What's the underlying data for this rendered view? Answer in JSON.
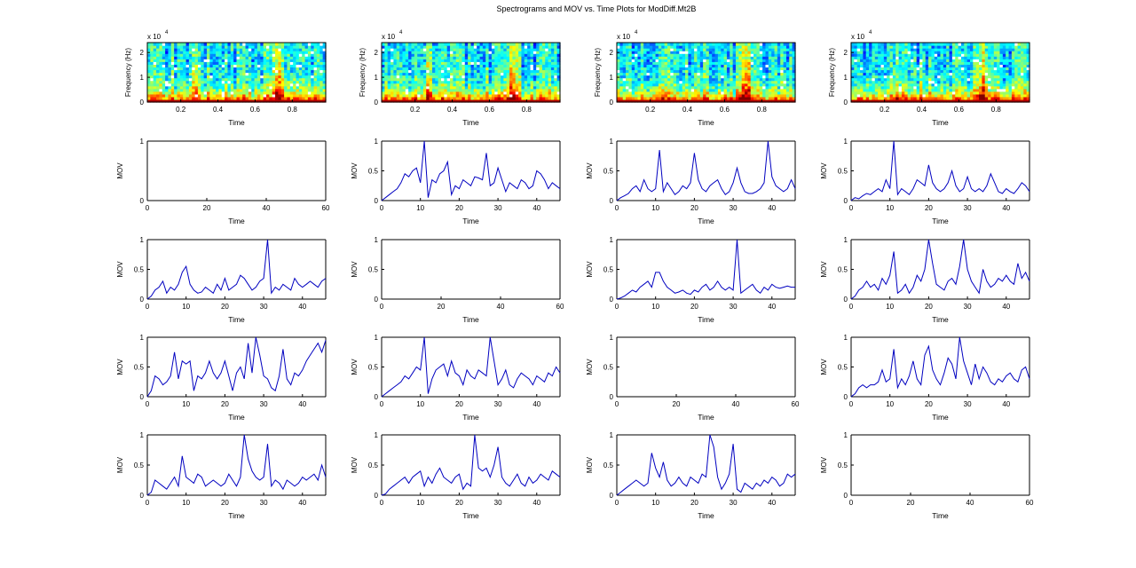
{
  "figure": {
    "title": "Spectrograms and MOV vs. Time Plots for ModDiff.Mt2B"
  },
  "colors": {
    "line": "#0000c0",
    "axes": "#000000",
    "background": "#ffffff"
  },
  "chart_data": [
    {
      "type": "heatmap",
      "panel": "spectrogram-1",
      "xlabel": "Time",
      "ylabel": "Frequency (Hz)",
      "exponent_label": "x 10",
      "exponent": "4",
      "x_ticks": [
        "0.2",
        "0.4",
        "0.6",
        "0.8"
      ],
      "y_ticks": [
        "0",
        "1",
        "2"
      ],
      "xlim": [
        0.02,
        0.98
      ],
      "ylim": [
        0,
        2.4
      ],
      "seed": 11
    },
    {
      "type": "heatmap",
      "panel": "spectrogram-2",
      "xlabel": "Time",
      "ylabel": "Frequency (Hz)",
      "exponent_label": "x 10",
      "exponent": "4",
      "x_ticks": [
        "0.2",
        "0.4",
        "0.6",
        "0.8"
      ],
      "y_ticks": [
        "0",
        "1",
        "2"
      ],
      "xlim": [
        0.02,
        0.98
      ],
      "ylim": [
        0,
        2.4
      ],
      "seed": 23
    },
    {
      "type": "heatmap",
      "panel": "spectrogram-3",
      "xlabel": "Time",
      "ylabel": "Frequency (Hz)",
      "exponent_label": "x 10",
      "exponent": "4",
      "x_ticks": [
        "0.2",
        "0.4",
        "0.6",
        "0.8"
      ],
      "y_ticks": [
        "0",
        "1",
        "2"
      ],
      "xlim": [
        0.02,
        0.98
      ],
      "ylim": [
        0,
        2.4
      ],
      "seed": 37
    },
    {
      "type": "heatmap",
      "panel": "spectrogram-4",
      "xlabel": "Time",
      "ylabel": "Frequency (Hz)",
      "exponent_label": "x 10",
      "exponent": "4",
      "x_ticks": [
        "0.2",
        "0.4",
        "0.6",
        "0.8"
      ],
      "y_ticks": [
        "0",
        "1",
        "2"
      ],
      "xlim": [
        0.02,
        0.98
      ],
      "ylim": [
        0,
        2.4
      ],
      "seed": 53
    },
    {
      "type": "line",
      "panel": "mov-r1-c1",
      "xlabel": "Time",
      "ylabel": "MOV",
      "xlim": [
        0,
        60
      ],
      "ylim": [
        0,
        1
      ],
      "x_ticks": [
        0,
        20,
        40,
        60
      ],
      "y_ticks": [
        "0",
        "1"
      ],
      "values": []
    },
    {
      "type": "line",
      "panel": "mov-r1-c2",
      "xlabel": "Time",
      "ylabel": "MOV",
      "xlim": [
        0,
        46
      ],
      "ylim": [
        0,
        1
      ],
      "x_ticks": [
        0,
        10,
        20,
        30,
        40
      ],
      "y_ticks": [
        "0",
        "0.5",
        "1"
      ],
      "values": [
        0,
        0.05,
        0.1,
        0.15,
        0.2,
        0.3,
        0.45,
        0.4,
        0.5,
        0.55,
        0.3,
        1.0,
        0.05,
        0.35,
        0.3,
        0.45,
        0.5,
        0.65,
        0.1,
        0.25,
        0.2,
        0.35,
        0.3,
        0.25,
        0.4,
        0.38,
        0.35,
        0.8,
        0.25,
        0.3,
        0.55,
        0.35,
        0.15,
        0.3,
        0.25,
        0.2,
        0.35,
        0.3,
        0.2,
        0.25,
        0.5,
        0.45,
        0.35,
        0.2,
        0.3,
        0.25,
        0.2
      ]
    },
    {
      "type": "line",
      "panel": "mov-r1-c3",
      "xlabel": "Time",
      "ylabel": "MOV",
      "xlim": [
        0,
        46
      ],
      "ylim": [
        0,
        1
      ],
      "x_ticks": [
        0,
        10,
        20,
        30,
        40
      ],
      "y_ticks": [
        "0",
        "0.5",
        "1"
      ],
      "values": [
        0,
        0.05,
        0.08,
        0.12,
        0.2,
        0.25,
        0.15,
        0.35,
        0.2,
        0.15,
        0.2,
        0.85,
        0.15,
        0.3,
        0.2,
        0.1,
        0.15,
        0.25,
        0.2,
        0.3,
        0.8,
        0.35,
        0.2,
        0.15,
        0.25,
        0.3,
        0.35,
        0.2,
        0.1,
        0.15,
        0.3,
        0.55,
        0.3,
        0.15,
        0.12,
        0.12,
        0.15,
        0.2,
        0.3,
        1.0,
        0.4,
        0.25,
        0.2,
        0.15,
        0.2,
        0.35,
        0.2
      ]
    },
    {
      "type": "line",
      "panel": "mov-r1-c4",
      "xlabel": "Time",
      "ylabel": "MOV",
      "xlim": [
        0,
        46
      ],
      "ylim": [
        0,
        1
      ],
      "x_ticks": [
        0,
        10,
        20,
        30,
        40
      ],
      "y_ticks": [
        "0",
        "0.5",
        "1"
      ],
      "values": [
        0,
        0.05,
        0.03,
        0.08,
        0.12,
        0.1,
        0.15,
        0.2,
        0.15,
        0.35,
        0.2,
        1.0,
        0.1,
        0.2,
        0.15,
        0.1,
        0.2,
        0.35,
        0.3,
        0.25,
        0.6,
        0.3,
        0.2,
        0.15,
        0.2,
        0.3,
        0.5,
        0.25,
        0.15,
        0.2,
        0.4,
        0.2,
        0.15,
        0.2,
        0.15,
        0.25,
        0.45,
        0.3,
        0.15,
        0.12,
        0.2,
        0.15,
        0.12,
        0.2,
        0.3,
        0.25,
        0.15
      ]
    },
    {
      "type": "line",
      "panel": "mov-r2-c1",
      "xlabel": "Time",
      "ylabel": "MOV",
      "xlim": [
        0,
        46
      ],
      "ylim": [
        0,
        1
      ],
      "x_ticks": [
        0,
        10,
        20,
        30,
        40
      ],
      "y_ticks": [
        "0",
        "0.5",
        "1"
      ],
      "values": [
        0,
        0.05,
        0.15,
        0.2,
        0.3,
        0.1,
        0.2,
        0.15,
        0.25,
        0.45,
        0.55,
        0.25,
        0.15,
        0.1,
        0.12,
        0.2,
        0.15,
        0.1,
        0.25,
        0.15,
        0.35,
        0.15,
        0.2,
        0.25,
        0.4,
        0.35,
        0.25,
        0.15,
        0.2,
        0.3,
        0.35,
        1.0,
        0.1,
        0.2,
        0.15,
        0.25,
        0.2,
        0.15,
        0.35,
        0.25,
        0.2,
        0.25,
        0.3,
        0.25,
        0.2,
        0.3,
        0.35
      ]
    },
    {
      "type": "line",
      "panel": "mov-r2-c2",
      "xlabel": "Time",
      "ylabel": "MOV",
      "xlim": [
        0,
        60
      ],
      "ylim": [
        0,
        1
      ],
      "x_ticks": [
        0,
        20,
        40,
        60
      ],
      "y_ticks": [
        "0",
        "0.5",
        "1"
      ],
      "values": []
    },
    {
      "type": "line",
      "panel": "mov-r2-c3",
      "xlabel": "Time",
      "ylabel": "MOV",
      "xlim": [
        0,
        46
      ],
      "ylim": [
        0,
        1
      ],
      "x_ticks": [
        0,
        10,
        20,
        30,
        40
      ],
      "y_ticks": [
        "0",
        "0.5",
        "1"
      ],
      "values": [
        0,
        0.02,
        0.05,
        0.1,
        0.15,
        0.12,
        0.2,
        0.25,
        0.3,
        0.2,
        0.45,
        0.45,
        0.3,
        0.2,
        0.15,
        0.1,
        0.12,
        0.15,
        0.1,
        0.08,
        0.15,
        0.12,
        0.2,
        0.25,
        0.15,
        0.2,
        0.3,
        0.2,
        0.15,
        0.2,
        0.15,
        1.0,
        0.1,
        0.15,
        0.2,
        0.25,
        0.15,
        0.1,
        0.2,
        0.15,
        0.25,
        0.2,
        0.18,
        0.2,
        0.22,
        0.2,
        0.2
      ]
    },
    {
      "type": "line",
      "panel": "mov-r2-c4",
      "xlabel": "Time",
      "ylabel": "MOV",
      "xlim": [
        0,
        46
      ],
      "ylim": [
        0,
        1
      ],
      "x_ticks": [
        0,
        10,
        20,
        30,
        40
      ],
      "y_ticks": [
        "0",
        "0.5",
        "1"
      ],
      "values": [
        0,
        0.05,
        0.15,
        0.2,
        0.3,
        0.2,
        0.25,
        0.15,
        0.35,
        0.25,
        0.4,
        0.8,
        0.1,
        0.15,
        0.25,
        0.1,
        0.2,
        0.4,
        0.3,
        0.5,
        1.0,
        0.6,
        0.25,
        0.2,
        0.15,
        0.3,
        0.35,
        0.25,
        0.55,
        1.0,
        0.5,
        0.3,
        0.2,
        0.1,
        0.5,
        0.3,
        0.2,
        0.25,
        0.35,
        0.3,
        0.4,
        0.3,
        0.25,
        0.6,
        0.35,
        0.45,
        0.3
      ]
    },
    {
      "type": "line",
      "panel": "mov-r3-c1",
      "xlabel": "Time",
      "ylabel": "MOV",
      "xlim": [
        0,
        46
      ],
      "ylim": [
        0,
        1
      ],
      "x_ticks": [
        0,
        10,
        20,
        30,
        40
      ],
      "y_ticks": [
        "0",
        "0.5",
        "1"
      ],
      "values": [
        0,
        0.1,
        0.35,
        0.3,
        0.2,
        0.25,
        0.35,
        0.75,
        0.3,
        0.6,
        0.55,
        0.6,
        0.1,
        0.35,
        0.3,
        0.4,
        0.6,
        0.4,
        0.3,
        0.4,
        0.6,
        0.35,
        0.1,
        0.4,
        0.5,
        0.3,
        0.9,
        0.4,
        1.0,
        0.7,
        0.35,
        0.3,
        0.15,
        0.1,
        0.35,
        0.8,
        0.3,
        0.2,
        0.4,
        0.35,
        0.45,
        0.6,
        0.7,
        0.8,
        0.9,
        0.75,
        0.95
      ]
    },
    {
      "type": "line",
      "panel": "mov-r3-c2",
      "xlabel": "Time",
      "ylabel": "MOV",
      "xlim": [
        0,
        46
      ],
      "ylim": [
        0,
        1
      ],
      "x_ticks": [
        0,
        10,
        20,
        30,
        40
      ],
      "y_ticks": [
        "0",
        "0.5",
        "1"
      ],
      "values": [
        0,
        0.05,
        0.1,
        0.15,
        0.2,
        0.25,
        0.35,
        0.3,
        0.4,
        0.5,
        0.45,
        1.0,
        0.05,
        0.3,
        0.45,
        0.5,
        0.55,
        0.35,
        0.6,
        0.4,
        0.35,
        0.2,
        0.45,
        0.35,
        0.3,
        0.45,
        0.4,
        0.35,
        1.0,
        0.6,
        0.2,
        0.3,
        0.45,
        0.2,
        0.15,
        0.3,
        0.4,
        0.35,
        0.3,
        0.2,
        0.35,
        0.3,
        0.25,
        0.4,
        0.35,
        0.5,
        0.4
      ]
    },
    {
      "type": "line",
      "panel": "mov-r3-c3",
      "xlabel": "Time",
      "ylabel": "MOV",
      "xlim": [
        0,
        60
      ],
      "ylim": [
        0,
        1
      ],
      "x_ticks": [
        0,
        20,
        40,
        60
      ],
      "y_ticks": [
        "0",
        "0.5",
        "1"
      ],
      "values": []
    },
    {
      "type": "line",
      "panel": "mov-r3-c4",
      "xlabel": "Time",
      "ylabel": "MOV",
      "xlim": [
        0,
        46
      ],
      "ylim": [
        0,
        1
      ],
      "x_ticks": [
        0,
        10,
        20,
        30,
        40
      ],
      "y_ticks": [
        "0",
        "0.5",
        "1"
      ],
      "values": [
        0,
        0.05,
        0.15,
        0.2,
        0.15,
        0.2,
        0.2,
        0.25,
        0.45,
        0.25,
        0.3,
        0.8,
        0.15,
        0.3,
        0.2,
        0.35,
        0.6,
        0.3,
        0.2,
        0.7,
        0.85,
        0.45,
        0.3,
        0.2,
        0.4,
        0.65,
        0.55,
        0.3,
        1.0,
        0.6,
        0.4,
        0.2,
        0.55,
        0.3,
        0.5,
        0.4,
        0.25,
        0.2,
        0.3,
        0.25,
        0.35,
        0.4,
        0.3,
        0.25,
        0.45,
        0.5,
        0.3
      ]
    },
    {
      "type": "line",
      "panel": "mov-r4-c1",
      "xlabel": "Time",
      "ylabel": "MOV",
      "xlim": [
        0,
        46
      ],
      "ylim": [
        0,
        1
      ],
      "x_ticks": [
        0,
        10,
        20,
        30,
        40
      ],
      "y_ticks": [
        "0",
        "0.5",
        "1"
      ],
      "values": [
        0,
        0.05,
        0.25,
        0.2,
        0.15,
        0.1,
        0.2,
        0.3,
        0.15,
        0.65,
        0.3,
        0.25,
        0.2,
        0.35,
        0.3,
        0.15,
        0.2,
        0.25,
        0.2,
        0.15,
        0.2,
        0.35,
        0.25,
        0.15,
        0.3,
        1.0,
        0.6,
        0.4,
        0.3,
        0.25,
        0.3,
        0.85,
        0.15,
        0.25,
        0.2,
        0.1,
        0.25,
        0.2,
        0.15,
        0.2,
        0.3,
        0.25,
        0.3,
        0.35,
        0.25,
        0.5,
        0.3
      ]
    },
    {
      "type": "line",
      "panel": "mov-r4-c2",
      "xlabel": "Time",
      "ylabel": "MOV",
      "xlim": [
        0,
        46
      ],
      "ylim": [
        0,
        1
      ],
      "x_ticks": [
        0,
        10,
        20,
        30,
        40
      ],
      "y_ticks": [
        "0",
        "0.5",
        "1"
      ],
      "values": [
        0,
        0.02,
        0.1,
        0.15,
        0.2,
        0.25,
        0.3,
        0.2,
        0.3,
        0.35,
        0.4,
        0.15,
        0.3,
        0.2,
        0.35,
        0.45,
        0.3,
        0.25,
        0.2,
        0.3,
        0.35,
        0.1,
        0.2,
        0.15,
        1.0,
        0.45,
        0.4,
        0.45,
        0.3,
        0.5,
        0.8,
        0.3,
        0.2,
        0.15,
        0.25,
        0.35,
        0.2,
        0.15,
        0.3,
        0.2,
        0.25,
        0.35,
        0.3,
        0.25,
        0.4,
        0.35,
        0.3
      ]
    },
    {
      "type": "line",
      "panel": "mov-r4-c3",
      "xlabel": "Time",
      "ylabel": "MOV",
      "xlim": [
        0,
        46
      ],
      "ylim": [
        0,
        1
      ],
      "x_ticks": [
        0,
        10,
        20,
        30,
        40
      ],
      "y_ticks": [
        "0",
        "0.5",
        "1"
      ],
      "values": [
        0,
        0.05,
        0.1,
        0.15,
        0.2,
        0.25,
        0.2,
        0.15,
        0.2,
        0.7,
        0.45,
        0.3,
        0.55,
        0.25,
        0.15,
        0.2,
        0.3,
        0.2,
        0.15,
        0.3,
        0.25,
        0.2,
        0.35,
        0.3,
        1.0,
        0.8,
        0.3,
        0.1,
        0.2,
        0.35,
        0.85,
        0.1,
        0.05,
        0.2,
        0.15,
        0.1,
        0.2,
        0.15,
        0.25,
        0.2,
        0.3,
        0.25,
        0.15,
        0.2,
        0.35,
        0.3,
        0.35
      ]
    },
    {
      "type": "line",
      "panel": "mov-r4-c4",
      "xlabel": "Time",
      "ylabel": "MOV",
      "xlim": [
        0,
        60
      ],
      "ylim": [
        0,
        1
      ],
      "x_ticks": [
        0,
        20,
        40,
        60
      ],
      "y_ticks": [
        "0",
        "0.5",
        "1"
      ],
      "values": []
    }
  ]
}
